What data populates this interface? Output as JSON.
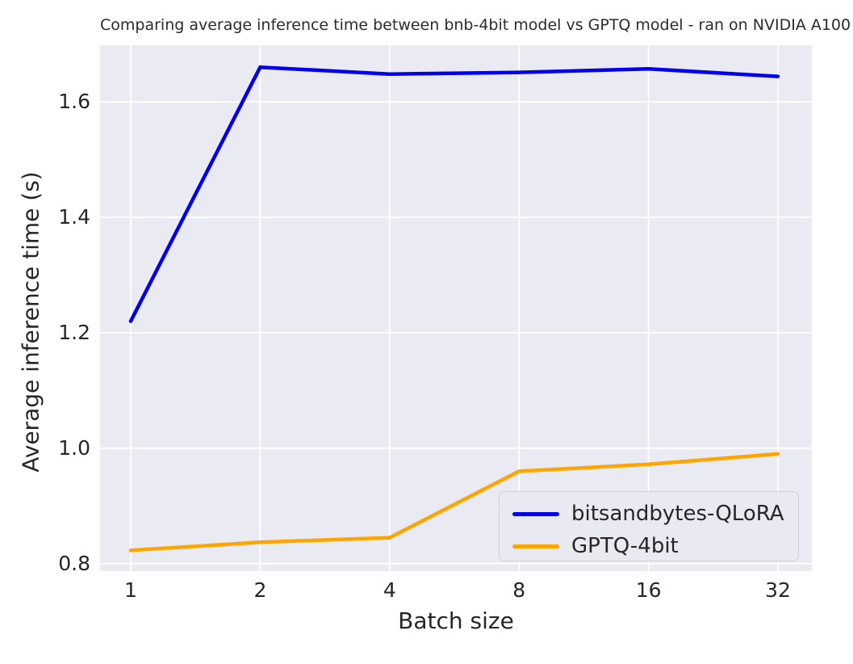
{
  "chart_data": {
    "type": "line",
    "title": "Comparing  average inference time between bnb-4bit model vs GPTQ model - ran on NVIDIA A100",
    "xlabel": "Batch size",
    "ylabel": "Average inference time (s)",
    "categories": [
      "1",
      "2",
      "4",
      "8",
      "16",
      "32"
    ],
    "x_scale": "log2-categorical-evenly-spaced",
    "series": [
      {
        "name": "bitsandbytes-QLoRA",
        "color": "#0000ee",
        "values": [
          1.22,
          1.66,
          1.648,
          1.651,
          1.657,
          1.644
        ]
      },
      {
        "name": "GPTQ-4bit",
        "color": "#ffa500",
        "values": [
          0.823,
          0.837,
          0.845,
          0.96,
          0.972,
          0.99
        ]
      }
    ],
    "ylim": [
      0.787,
      1.698
    ],
    "yticks": [
      0.8,
      1.0,
      1.2,
      1.4,
      1.6
    ],
    "ytick_labels": [
      "0.8",
      "1.0",
      "1.2",
      "1.4",
      "1.6"
    ],
    "grid": true,
    "legend_position": "lower right",
    "style": {
      "plot_bg": "#eaeaf2",
      "grid_color": "#ffffff",
      "text_color": "#262626",
      "legend_bg": "#e9e9f2",
      "legend_border": "#cfcfd8"
    }
  }
}
